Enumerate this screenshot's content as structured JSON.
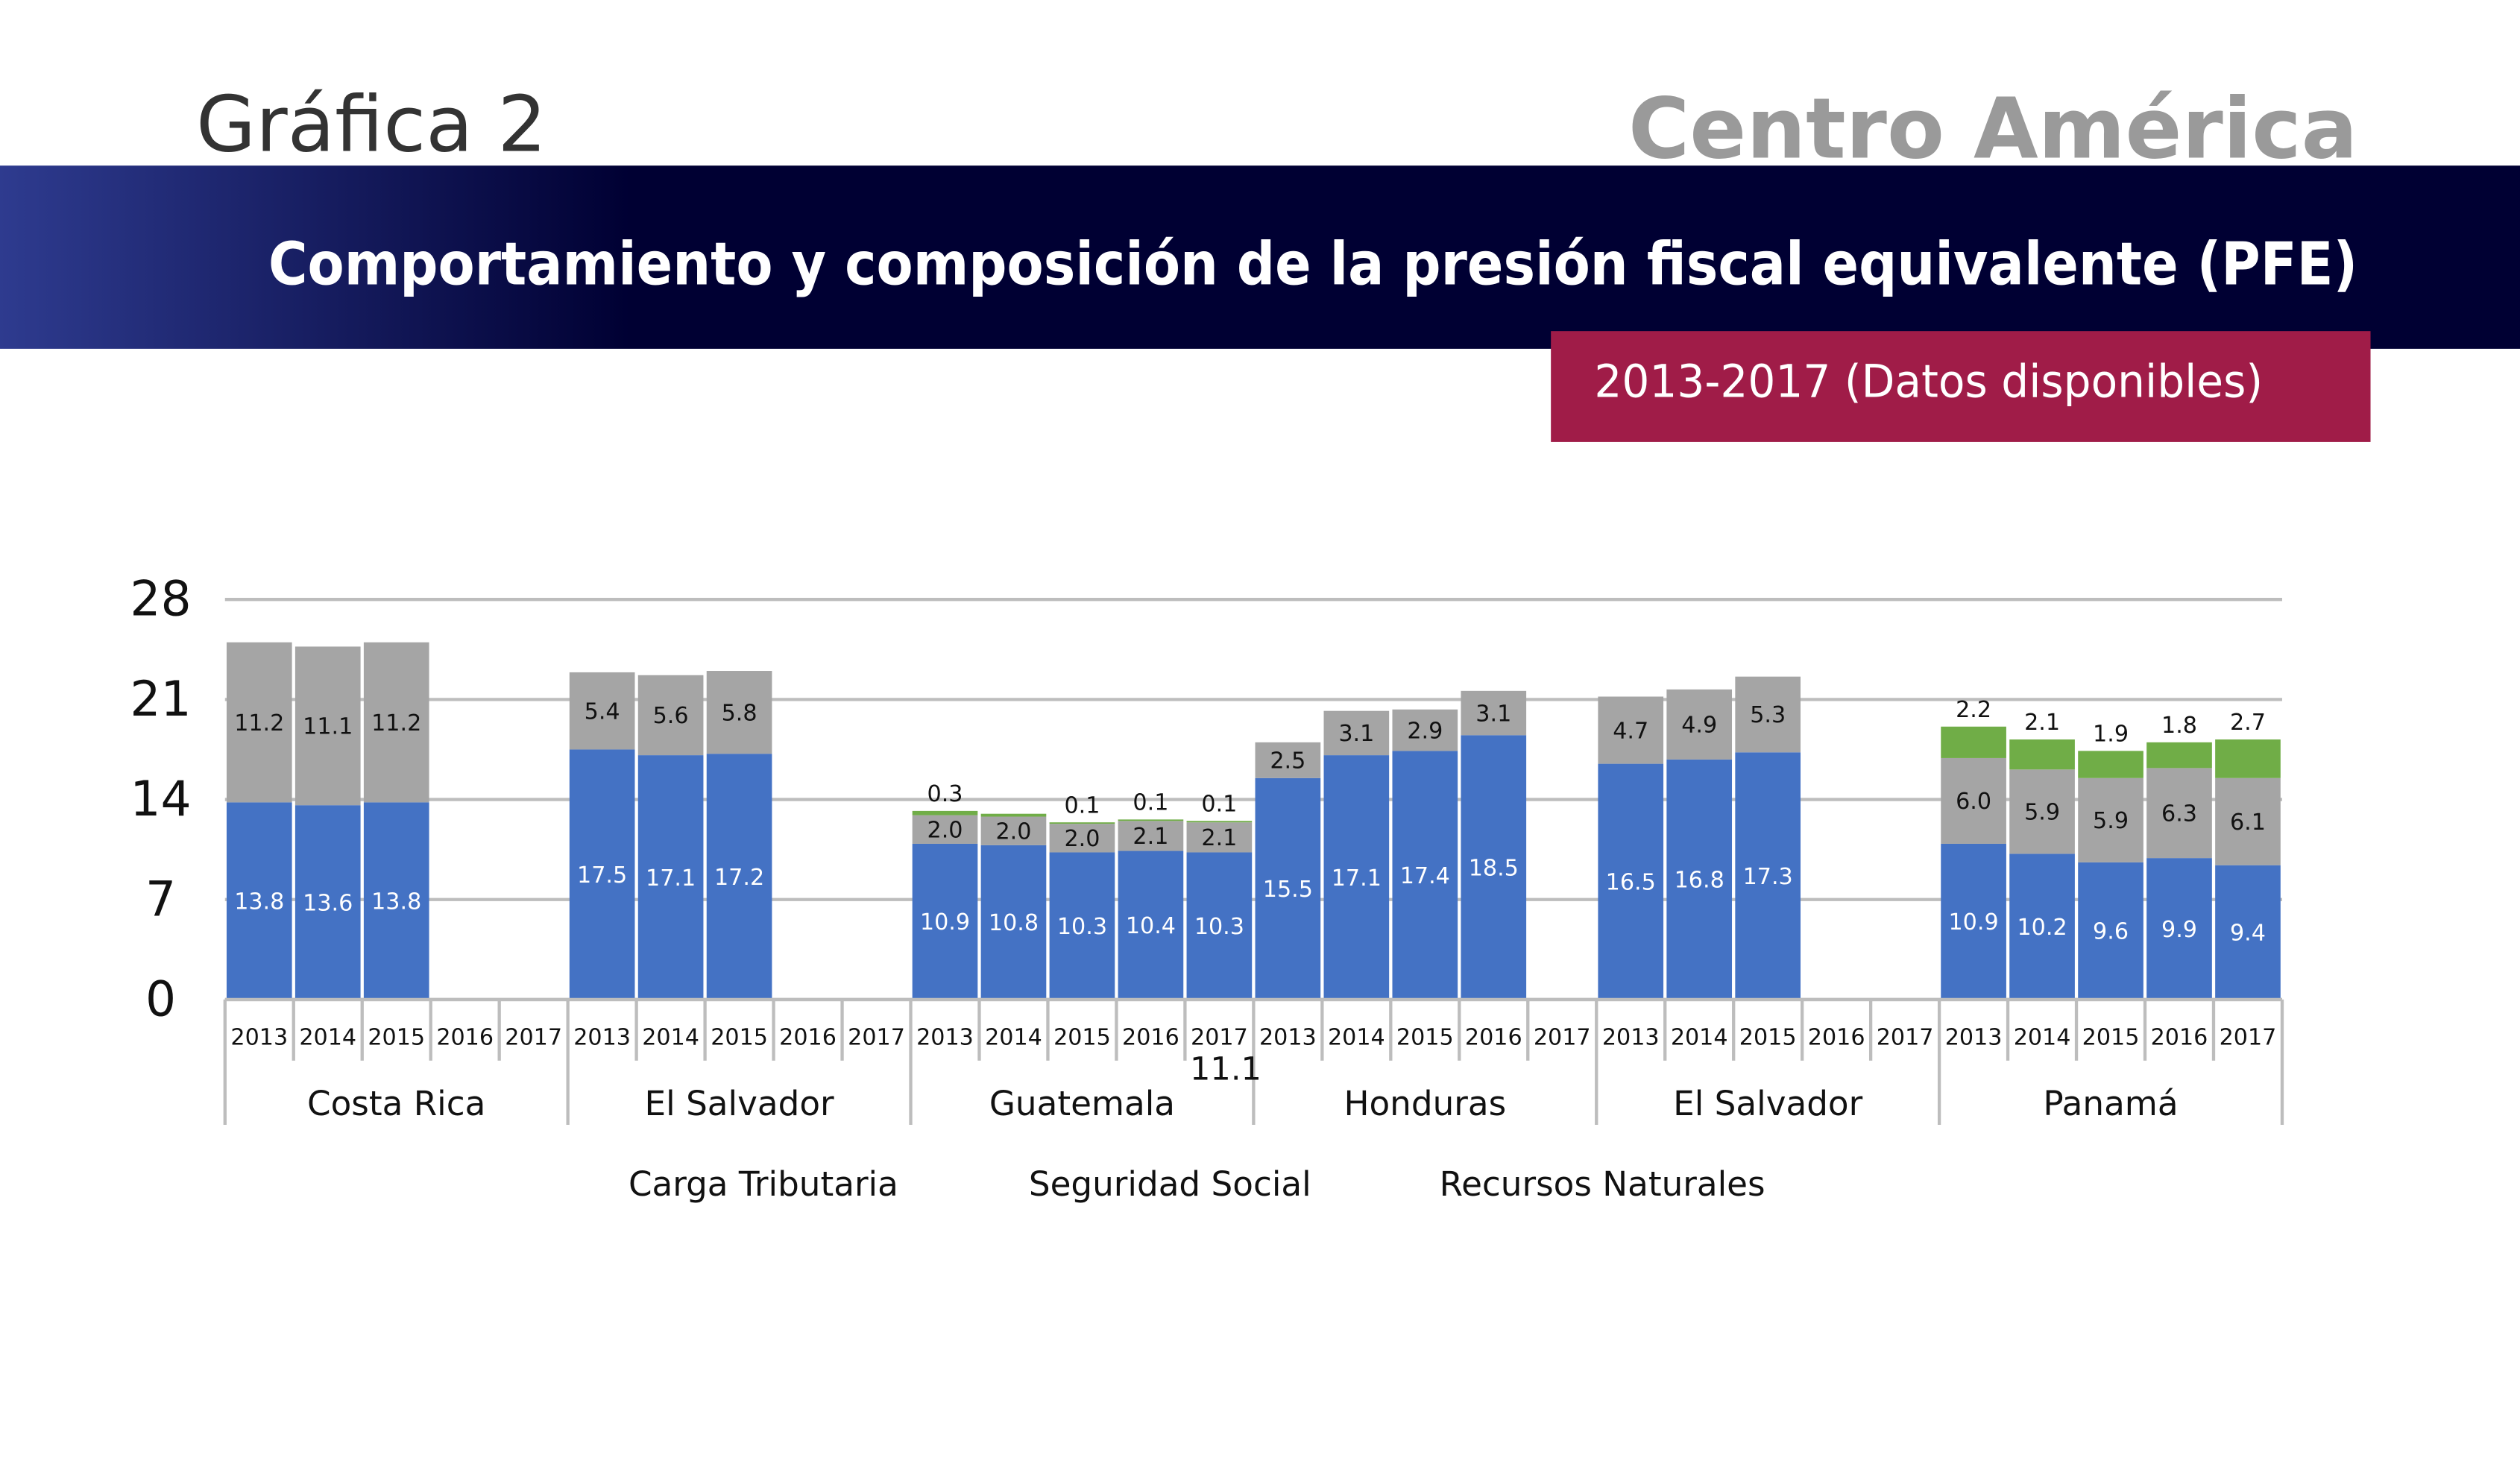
{
  "header": {
    "figure_label": "Gráfica 2",
    "region": "Centro América",
    "title": "Comportamiento y composición de la presión fiscal equivalente (PFE)",
    "period": "2013-2017 (Datos disponibles)"
  },
  "colors": {
    "banner_dark": "#000033",
    "banner_light": "#2e3b8f",
    "period_box": "#a01c48",
    "carga_tributaria": "#4472c4",
    "seguridad_social": "#a5a5a5",
    "recursos_naturales": "#70ad47"
  },
  "chart_data": {
    "type": "bar",
    "stacked": true,
    "grid": true,
    "legend_position": "bottom",
    "ylim": [
      0,
      28
    ],
    "yticks": [
      "0",
      "7",
      "14",
      "21",
      "28"
    ],
    "years": [
      "2013",
      "2014",
      "2015",
      "2016",
      "2017"
    ],
    "groups": [
      {
        "name": "Costa Rica",
        "values": [
          [
            13.8,
            11.2,
            null
          ],
          [
            13.6,
            11.1,
            null
          ],
          [
            13.8,
            11.2,
            null
          ],
          null,
          null
        ]
      },
      {
        "name": "El Salvador",
        "values": [
          [
            17.5,
            5.4,
            null
          ],
          [
            17.1,
            5.6,
            null
          ],
          [
            17.2,
            5.8,
            null
          ],
          null,
          null
        ]
      },
      {
        "name": "Guatemala",
        "values": [
          [
            10.9,
            2.0,
            0.3
          ],
          [
            10.8,
            2.0,
            0.2
          ],
          [
            10.3,
            2.0,
            0.1
          ],
          [
            10.4,
            2.1,
            0.1
          ],
          [
            10.3,
            2.1,
            0.1
          ]
        ]
      },
      {
        "name": "Honduras",
        "values": [
          [
            15.5,
            2.5,
            null
          ],
          [
            17.1,
            3.1,
            null
          ],
          [
            17.4,
            2.9,
            null
          ],
          [
            18.5,
            3.1,
            null
          ],
          null
        ]
      },
      {
        "name": "El Salvador",
        "values": [
          [
            16.5,
            4.7,
            null
          ],
          [
            16.8,
            4.9,
            null
          ],
          [
            17.3,
            5.3,
            null
          ],
          null,
          null
        ]
      },
      {
        "name": "Panamá",
        "values": [
          [
            10.9,
            6.0,
            2.2
          ],
          [
            10.2,
            5.9,
            2.1
          ],
          [
            9.6,
            5.9,
            1.9
          ],
          [
            9.9,
            6.3,
            1.8
          ],
          [
            9.4,
            6.1,
            2.7
          ]
        ]
      }
    ],
    "unlabeled_segments": [
      {
        "group": 2,
        "year": 1,
        "series": 2
      }
    ],
    "stray_label": "11.1",
    "series": [
      {
        "name": "Carga Tributaria"
      },
      {
        "name": "Seguridad Social"
      },
      {
        "name": "Recursos Naturales"
      }
    ]
  }
}
